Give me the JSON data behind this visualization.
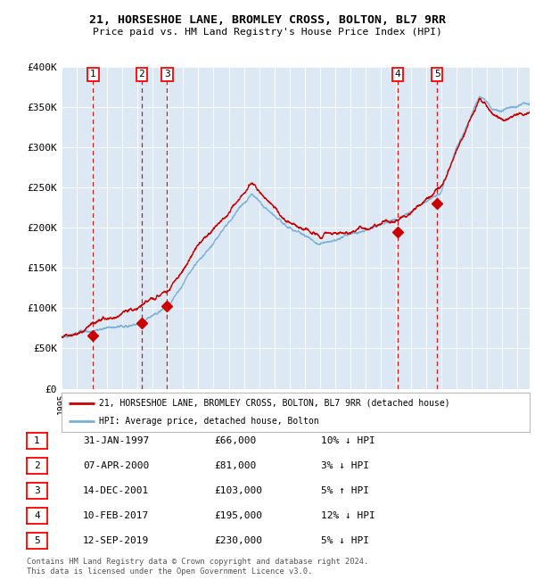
{
  "title": "21, HORSESHOE LANE, BROMLEY CROSS, BOLTON, BL7 9RR",
  "subtitle": "Price paid vs. HM Land Registry's House Price Index (HPI)",
  "plot_bg_color": "#dce9f5",
  "hpi_color": "#7aaed6",
  "price_color": "#cc0000",
  "marker_color": "#cc0000",
  "vline_color": "#cc0000",
  "ylim": [
    0,
    400000
  ],
  "yticks": [
    0,
    50000,
    100000,
    150000,
    200000,
    250000,
    300000,
    350000,
    400000
  ],
  "ytick_labels": [
    "£0",
    "£50K",
    "£100K",
    "£150K",
    "£200K",
    "£250K",
    "£300K",
    "£350K",
    "£400K"
  ],
  "xlim_start": 1995.0,
  "xlim_end": 2025.8,
  "sales": [
    {
      "label": 1,
      "date_num": 1997.08,
      "price": 66000,
      "date_str": "31-JAN-1997",
      "hpi_pct": "10% ↓ HPI"
    },
    {
      "label": 2,
      "date_num": 2000.27,
      "price": 81000,
      "date_str": "07-APR-2000",
      "hpi_pct": "3% ↓ HPI"
    },
    {
      "label": 3,
      "date_num": 2001.95,
      "price": 103000,
      "date_str": "14-DEC-2001",
      "hpi_pct": "5% ↑ HPI"
    },
    {
      "label": 4,
      "date_num": 2017.11,
      "price": 195000,
      "date_str": "10-FEB-2017",
      "hpi_pct": "12% ↓ HPI"
    },
    {
      "label": 5,
      "date_num": 2019.71,
      "price": 230000,
      "date_str": "12-SEP-2019",
      "hpi_pct": "5% ↓ HPI"
    }
  ],
  "legend_label_price": "21, HORSESHOE LANE, BROMLEY CROSS, BOLTON, BL7 9RR (detached house)",
  "legend_label_hpi": "HPI: Average price, detached house, Bolton",
  "footer": "Contains HM Land Registry data © Crown copyright and database right 2024.\nThis data is licensed under the Open Government Licence v3.0.",
  "table_rows": [
    [
      1,
      "31-JAN-1997",
      "£66,000",
      "10% ↓ HPI"
    ],
    [
      2,
      "07-APR-2000",
      "£81,000",
      "3% ↓ HPI"
    ],
    [
      3,
      "14-DEC-2001",
      "£103,000",
      "5% ↑ HPI"
    ],
    [
      4,
      "10-FEB-2017",
      "£195,000",
      "12% ↓ HPI"
    ],
    [
      5,
      "12-SEP-2019",
      "£230,000",
      "5% ↓ HPI"
    ]
  ]
}
